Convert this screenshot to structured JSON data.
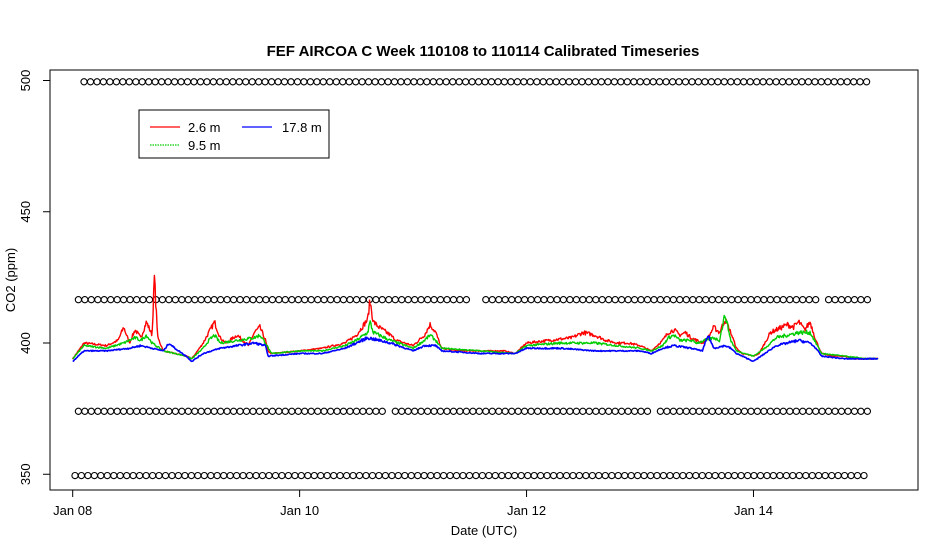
{
  "chart_data": {
    "type": "line",
    "title": "FEF AIRCOA C  Week 110108 to 110114  Calibrated Timeseries",
    "xlabel": "Date (UTC)",
    "ylabel": "CO2 (ppm)",
    "x_range_days_from_jan08": [
      -0.2,
      7.45
    ],
    "ylim": [
      344,
      504
    ],
    "x_ticks": [
      {
        "day": 0,
        "label": "Jan 08"
      },
      {
        "day": 2,
        "label": "Jan 10"
      },
      {
        "day": 4,
        "label": "Jan 12"
      },
      {
        "day": 6,
        "label": "Jan 14"
      }
    ],
    "y_ticks": [
      350,
      400,
      450,
      500
    ],
    "grid": false,
    "legend_position": "top-left",
    "legend": [
      {
        "label": "2.6 m",
        "color": "#ff0000"
      },
      {
        "label": "9.5 m",
        "color": "#00cc00"
      },
      {
        "label": "17.8 m",
        "color": "#0000ff"
      }
    ],
    "series": [
      {
        "name": "2.6 m",
        "color": "#ff0000",
        "points": [
          [
            0,
            394
          ],
          [
            0.1,
            400
          ],
          [
            0.3,
            399
          ],
          [
            0.4,
            401
          ],
          [
            0.45,
            406
          ],
          [
            0.5,
            400
          ],
          [
            0.55,
            405
          ],
          [
            0.6,
            402
          ],
          [
            0.65,
            408
          ],
          [
            0.7,
            403
          ],
          [
            0.72,
            425
          ],
          [
            0.75,
            402
          ],
          [
            0.8,
            397
          ],
          [
            0.9,
            396
          ],
          [
            1.0,
            395
          ],
          [
            1.05,
            394
          ],
          [
            1.15,
            400
          ],
          [
            1.2,
            404
          ],
          [
            1.25,
            408
          ],
          [
            1.3,
            402
          ],
          [
            1.35,
            400
          ],
          [
            1.45,
            403
          ],
          [
            1.55,
            399
          ],
          [
            1.6,
            404
          ],
          [
            1.65,
            406
          ],
          [
            1.7,
            401
          ],
          [
            1.72,
            397
          ],
          [
            1.75,
            396
          ],
          [
            2.0,
            397
          ],
          [
            2.2,
            398
          ],
          [
            2.4,
            400
          ],
          [
            2.5,
            403
          ],
          [
            2.55,
            406
          ],
          [
            2.6,
            409
          ],
          [
            2.62,
            416
          ],
          [
            2.65,
            408
          ],
          [
            2.7,
            406
          ],
          [
            2.8,
            403
          ],
          [
            2.85,
            401
          ],
          [
            3.0,
            399
          ],
          [
            3.1,
            403
          ],
          [
            3.15,
            407
          ],
          [
            3.2,
            404
          ],
          [
            3.25,
            398
          ],
          [
            3.4,
            397
          ],
          [
            3.6,
            397
          ],
          [
            3.8,
            397
          ],
          [
            3.9,
            396
          ],
          [
            4.0,
            400
          ],
          [
            4.2,
            401
          ],
          [
            4.4,
            402
          ],
          [
            4.5,
            404
          ],
          [
            4.6,
            403
          ],
          [
            4.7,
            401
          ],
          [
            4.8,
            400
          ],
          [
            4.9,
            400
          ],
          [
            5.0,
            399
          ],
          [
            5.05,
            398
          ],
          [
            5.1,
            397
          ],
          [
            5.15,
            399
          ],
          [
            5.2,
            401
          ],
          [
            5.25,
            404
          ],
          [
            5.3,
            405
          ],
          [
            5.35,
            403
          ],
          [
            5.4,
            404
          ],
          [
            5.45,
            402
          ],
          [
            5.5,
            401
          ],
          [
            5.55,
            400
          ],
          [
            5.6,
            402
          ],
          [
            5.65,
            406
          ],
          [
            5.7,
            404
          ],
          [
            5.75,
            409
          ],
          [
            5.8,
            404
          ],
          [
            5.85,
            398
          ],
          [
            5.9,
            396
          ],
          [
            6.0,
            395
          ],
          [
            6.05,
            396
          ],
          [
            6.1,
            400
          ],
          [
            6.15,
            404
          ],
          [
            6.2,
            405
          ],
          [
            6.25,
            406
          ],
          [
            6.3,
            407
          ],
          [
            6.35,
            406
          ],
          [
            6.4,
            408
          ],
          [
            6.45,
            405
          ],
          [
            6.5,
            408
          ],
          [
            6.55,
            401
          ],
          [
            6.6,
            396
          ],
          [
            6.7,
            395
          ],
          [
            6.8,
            395
          ],
          [
            6.9,
            394
          ],
          [
            7.0,
            394
          ],
          [
            7.1,
            394
          ]
        ]
      },
      {
        "name": "9.5 m",
        "color": "#00cc00",
        "points": [
          [
            0,
            394
          ],
          [
            0.1,
            399
          ],
          [
            0.3,
            398
          ],
          [
            0.45,
            400
          ],
          [
            0.55,
            402
          ],
          [
            0.6,
            401
          ],
          [
            0.65,
            403
          ],
          [
            0.7,
            400
          ],
          [
            0.8,
            397
          ],
          [
            1.0,
            395
          ],
          [
            1.05,
            394
          ],
          [
            1.15,
            398
          ],
          [
            1.2,
            401
          ],
          [
            1.25,
            403
          ],
          [
            1.3,
            400
          ],
          [
            1.45,
            401
          ],
          [
            1.6,
            402
          ],
          [
            1.65,
            403
          ],
          [
            1.7,
            400
          ],
          [
            1.75,
            396
          ],
          [
            2.0,
            397
          ],
          [
            2.2,
            397
          ],
          [
            2.4,
            399
          ],
          [
            2.5,
            401
          ],
          [
            2.6,
            404
          ],
          [
            2.62,
            408
          ],
          [
            2.65,
            404
          ],
          [
            2.8,
            401
          ],
          [
            3.0,
            398
          ],
          [
            3.1,
            401
          ],
          [
            3.15,
            403
          ],
          [
            3.2,
            401
          ],
          [
            3.25,
            398
          ],
          [
            3.6,
            397
          ],
          [
            3.9,
            396
          ],
          [
            4.0,
            399
          ],
          [
            4.3,
            400
          ],
          [
            4.5,
            400
          ],
          [
            4.6,
            400
          ],
          [
            4.8,
            399
          ],
          [
            5.0,
            398
          ],
          [
            5.1,
            397
          ],
          [
            5.2,
            399
          ],
          [
            5.25,
            402
          ],
          [
            5.3,
            403
          ],
          [
            5.35,
            401
          ],
          [
            5.45,
            401
          ],
          [
            5.5,
            400
          ],
          [
            5.65,
            402
          ],
          [
            5.7,
            401
          ],
          [
            5.75,
            411
          ],
          [
            5.8,
            401
          ],
          [
            5.85,
            397
          ],
          [
            6.0,
            395
          ],
          [
            6.1,
            398
          ],
          [
            6.2,
            402
          ],
          [
            6.3,
            403
          ],
          [
            6.4,
            404
          ],
          [
            6.5,
            404
          ],
          [
            6.55,
            400
          ],
          [
            6.6,
            396
          ],
          [
            6.8,
            395
          ],
          [
            7.0,
            394
          ],
          [
            7.1,
            394
          ]
        ]
      },
      {
        "name": "17.8 m",
        "color": "#0000ff",
        "points": [
          [
            0,
            393
          ],
          [
            0.1,
            397
          ],
          [
            0.3,
            397
          ],
          [
            0.5,
            398
          ],
          [
            0.6,
            399
          ],
          [
            0.7,
            398
          ],
          [
            0.8,
            397
          ],
          [
            0.85,
            400
          ],
          [
            0.9,
            398
          ],
          [
            1.0,
            395
          ],
          [
            1.05,
            393
          ],
          [
            1.15,
            396
          ],
          [
            1.3,
            398
          ],
          [
            1.45,
            399
          ],
          [
            1.6,
            400
          ],
          [
            1.7,
            399
          ],
          [
            1.72,
            395
          ],
          [
            2.0,
            396
          ],
          [
            2.2,
            396
          ],
          [
            2.4,
            398
          ],
          [
            2.5,
            400
          ],
          [
            2.6,
            402
          ],
          [
            2.7,
            401
          ],
          [
            2.8,
            400
          ],
          [
            3.0,
            397
          ],
          [
            3.1,
            399
          ],
          [
            3.2,
            399
          ],
          [
            3.25,
            397
          ],
          [
            3.6,
            396
          ],
          [
            3.9,
            396
          ],
          [
            4.0,
            398
          ],
          [
            4.3,
            398
          ],
          [
            4.6,
            397
          ],
          [
            4.8,
            397
          ],
          [
            5.0,
            397
          ],
          [
            5.1,
            396
          ],
          [
            5.2,
            398
          ],
          [
            5.3,
            399
          ],
          [
            5.45,
            398
          ],
          [
            5.55,
            397
          ],
          [
            5.6,
            403
          ],
          [
            5.65,
            398
          ],
          [
            5.75,
            399
          ],
          [
            5.8,
            398
          ],
          [
            5.85,
            396
          ],
          [
            6.0,
            393
          ],
          [
            6.1,
            396
          ],
          [
            6.2,
            399
          ],
          [
            6.3,
            400
          ],
          [
            6.4,
            401
          ],
          [
            6.5,
            400
          ],
          [
            6.55,
            398
          ],
          [
            6.6,
            395
          ],
          [
            6.8,
            394
          ],
          [
            7.0,
            394
          ],
          [
            7.1,
            394
          ]
        ]
      }
    ],
    "marker_rows": [
      {
        "y": 499.5,
        "start": 0.1,
        "end": 7.03,
        "step": 0.057,
        "gaps": [
          [
            2.05,
            2.08
          ]
        ]
      },
      {
        "y": 416.5,
        "start": 0.05,
        "end": 7.03,
        "step": 0.057,
        "gaps": [
          [
            3.5,
            3.6
          ],
          [
            6.57,
            6.61
          ]
        ]
      },
      {
        "y": 374,
        "start": 0.05,
        "end": 7.03,
        "step": 0.057,
        "gaps": [
          [
            2.75,
            2.8
          ],
          [
            4.73,
            4.78
          ],
          [
            5.1,
            5.18
          ]
        ]
      },
      {
        "y": 349.5,
        "start": 0.02,
        "end": 7.03,
        "step": 0.057,
        "gaps": []
      }
    ]
  }
}
